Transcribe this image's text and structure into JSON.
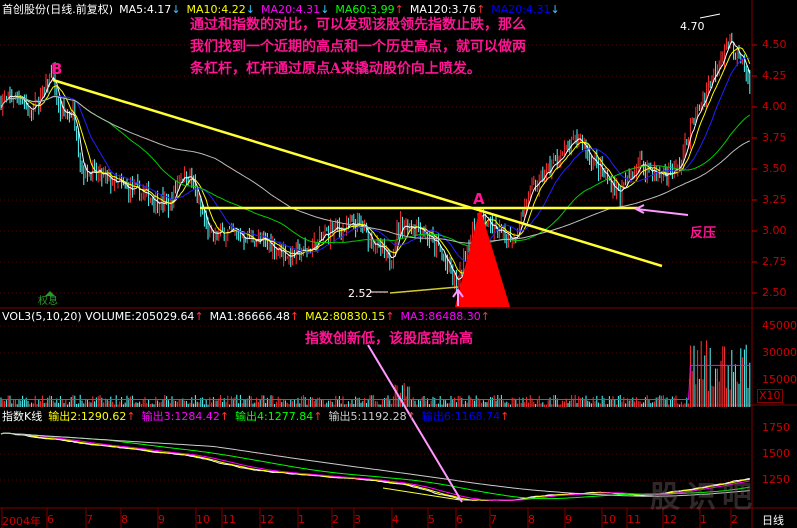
{
  "header": {
    "stock": "首创股份(日线.前复权)",
    "ma": [
      {
        "label": "MA5:4.17",
        "color": "#ffffff",
        "arrow": "↓"
      },
      {
        "label": "MA10:4.22",
        "color": "#ffff00",
        "arrow": "↓"
      },
      {
        "label": "MA20:4.31",
        "color": "#ff00ff",
        "arrow": "↓"
      },
      {
        "label": "MA60:3.99",
        "color": "#00ff00",
        "arrow": "↑"
      },
      {
        "label": "MA120:3.76",
        "color": "#ffffff",
        "arrow": "↑"
      },
      {
        "label": "MA20:4.31",
        "color": "#0000ff",
        "arrow": "↓"
      }
    ]
  },
  "volume_header": {
    "items": [
      {
        "label": "VOL3(5,10,20) VOLUME:205029.64",
        "color": "#ffffff",
        "arrow": "↑"
      },
      {
        "label": "MA1:86666.48",
        "color": "#ffffff",
        "arrow": "↑"
      },
      {
        "label": "MA2:80830.15",
        "color": "#ffff00",
        "arrow": "↑"
      },
      {
        "label": "MA3:86488.30",
        "color": "#ff00ff",
        "arrow": "↑"
      }
    ]
  },
  "index_header": {
    "items": [
      {
        "label": "指数K线",
        "color": "#ffffff",
        "arrow": ""
      },
      {
        "label": "输出2:1290.62",
        "color": "#ffff00",
        "arrow": "↑"
      },
      {
        "label": "输出3:1284.42",
        "color": "#ff00ff",
        "arrow": "↑"
      },
      {
        "label": "输出4:1277.84",
        "color": "#00ff00",
        "arrow": "↑"
      },
      {
        "label": "输出5:1192.28",
        "color": "#cccccc",
        "arrow": "↑"
      },
      {
        "label": "输出6:1168.74",
        "color": "#0000ff",
        "arrow": "↑"
      }
    ]
  },
  "annotations": {
    "note_top": [
      "通过和指数的对比，可以发现该股领先指数止跌，那么",
      "我们找到一个近期的高点和一个历史高点，就可以做两",
      "条杠杆，杠杆通过原点A来撬动股价向上喷发。"
    ],
    "note_mid": "指数创新低，该股底部抬高",
    "point_a": "A",
    "point_b": "B",
    "resistance": "反压",
    "high_label": "4.70",
    "low_label": "2.52",
    "ex_rights": "权息",
    "volume_scale": "X10"
  },
  "axes": {
    "price_ticks": [
      "4.50",
      "4.25",
      "4.00",
      "3.75",
      "3.50",
      "3.25",
      "3.00",
      "2.75",
      "2.50"
    ],
    "volume_ticks": [
      "45000",
      "30000",
      "15000"
    ],
    "index_ticks": [
      "1750",
      "1500",
      "1250"
    ],
    "months": [
      "2004年",
      "6",
      "7",
      "8",
      "9",
      "10",
      "11",
      "12",
      "1",
      "2",
      "3",
      "4",
      "5",
      "6",
      "7",
      "8",
      "9",
      "10",
      "11",
      "12",
      "1",
      "2"
    ],
    "period": "日线"
  },
  "watermark": "股识吧",
  "colors": {
    "up": "#ff3232",
    "down": "#54fcfc",
    "grid": "#800000",
    "axis_text": "#cc0000",
    "note": "#ff1493",
    "trend_line": "#ffff33",
    "triangle": "#ff0000"
  },
  "chart_data": [
    {
      "type": "candlestick",
      "title": "首创股份(日线.前复权)",
      "ylim": [
        2.45,
        4.75
      ],
      "grid": true,
      "series_close_approx": [
        [
          "2004-04-26",
          4.05
        ],
        [
          "2004-05-10",
          4.1
        ],
        [
          "2004-05-18",
          3.95
        ],
        [
          "2004-05-28",
          4.1
        ],
        [
          "2004-06-05",
          4.3
        ],
        [
          "2004-06-10",
          3.95
        ],
        [
          "2004-06-22",
          3.95
        ],
        [
          "2004-06-27",
          3.5
        ],
        [
          "2004-07-12",
          3.45
        ],
        [
          "2004-08-03",
          3.35
        ],
        [
          "2004-08-20",
          3.3
        ],
        [
          "2004-09-10",
          3.2
        ],
        [
          "2004-09-18",
          3.45
        ],
        [
          "2004-09-26",
          3.45
        ],
        [
          "2004-10-05",
          3.2
        ],
        [
          "2004-10-17",
          2.95
        ],
        [
          "2004-11-05",
          3.0
        ],
        [
          "2004-11-20",
          2.95
        ],
        [
          "2004-12-08",
          2.9
        ],
        [
          "2004-12-24",
          2.8
        ],
        [
          "2005-01-11",
          2.85
        ],
        [
          "2005-01-29",
          3.0
        ],
        [
          "2005-03-05",
          3.05
        ],
        [
          "2005-03-17",
          2.9
        ],
        [
          "2005-03-29",
          2.75
        ],
        [
          "2005-04-07",
          3.05
        ],
        [
          "2005-04-23",
          3.05
        ],
        [
          "2005-05-13",
          2.85
        ],
        [
          "2005-06-02",
          2.55
        ],
        [
          "2005-06-12",
          2.9
        ],
        [
          "2005-06-21",
          3.15
        ],
        [
          "2005-07-04",
          3.0
        ],
        [
          "2005-07-20",
          2.95
        ],
        [
          "2005-08-02",
          3.3
        ],
        [
          "2005-08-22",
          3.55
        ],
        [
          "2005-09-12",
          3.75
        ],
        [
          "2005-09-28",
          3.5
        ],
        [
          "2005-10-22",
          3.3
        ],
        [
          "2005-11-11",
          3.55
        ],
        [
          "2005-11-28",
          3.45
        ],
        [
          "2005-12-14",
          3.5
        ],
        [
          "2005-12-22",
          3.8
        ],
        [
          "2006-01-10",
          4.2
        ],
        [
          "2006-01-29",
          4.55
        ],
        [
          "2006-02-12",
          4.35
        ],
        [
          "2006-02-22",
          4.15
        ]
      ],
      "high": {
        "date": "2006-01-27",
        "value": 4.7
      },
      "low": {
        "date": "2005-06-02",
        "value": 2.52
      }
    },
    {
      "type": "bar",
      "title": "VOL3(5,10,20)",
      "ylim": [
        0,
        50000
      ],
      "last_volume": 205029.64
    },
    {
      "type": "line",
      "title": "指数K线",
      "ylim": [
        1000,
        1850
      ],
      "series_approx": [
        [
          "2004-04-26",
          1700
        ],
        [
          "2004-06-15",
          1620
        ],
        [
          "2004-09-25",
          1480
        ],
        [
          "2004-11-20",
          1350
        ],
        [
          "2005-01-03",
          1300
        ],
        [
          "2005-03-10",
          1250
        ],
        [
          "2005-04-10",
          1200
        ],
        [
          "2005-06-02",
          1060
        ],
        [
          "2005-07-10",
          1050
        ],
        [
          "2005-08-12",
          1100
        ],
        [
          "2005-09-28",
          1130
        ],
        [
          "2005-11-11",
          1100
        ],
        [
          "2005-12-20",
          1160
        ],
        [
          "2006-02-20",
          1270
        ]
      ]
    }
  ]
}
